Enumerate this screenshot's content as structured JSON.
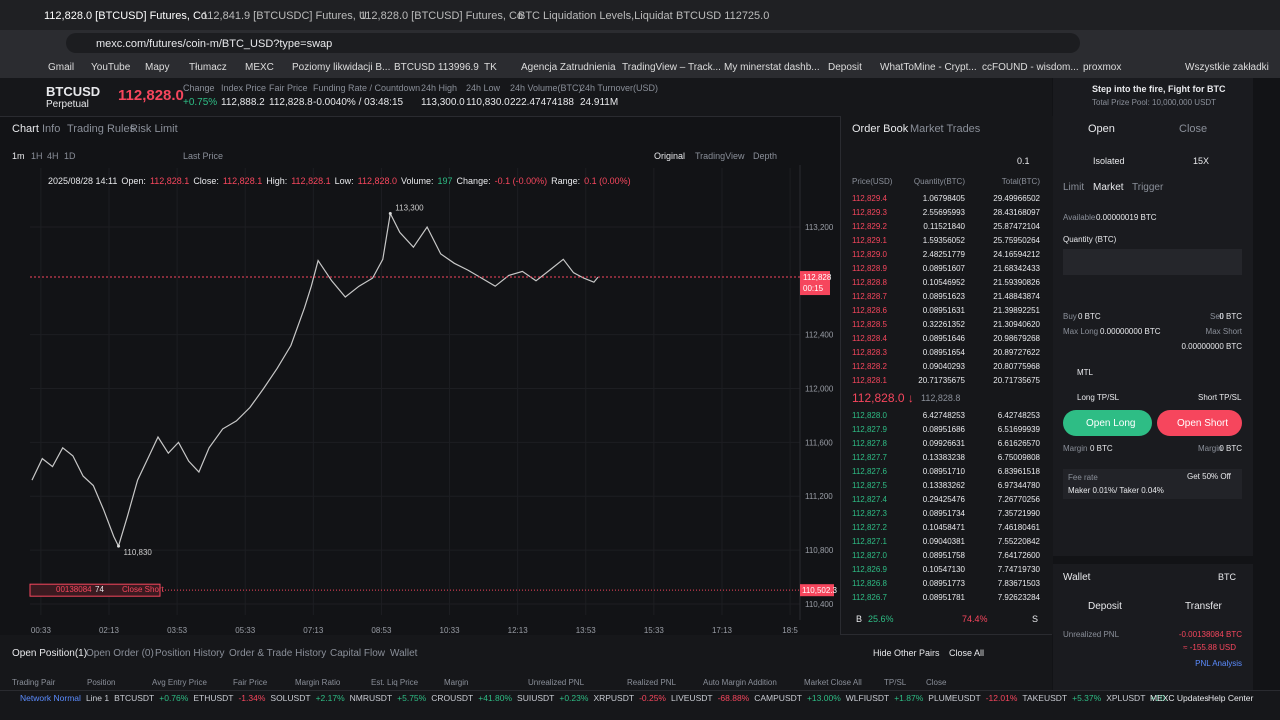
{
  "browser": {
    "tabs": [
      "112,828.0 [BTCUSD] Futures, Co",
      "112,841.9 [BTCUSDC] Futures, U",
      "112,828.0 [BTCUSD] Futures, Co",
      "BTC Liquidation Levels,Liquidat",
      "BTCUSD 112725.0"
    ],
    "address": "mexc.com/futures/coin-m/BTC_USD?type=swap",
    "bookmarks": [
      "Gmail",
      "YouTube",
      "Mapy",
      "Tłumacz",
      "MEXC",
      "Poziomy likwidacji B...",
      "BTCUSD 113996.9",
      "TK",
      "Agencja Zatrudnienia",
      "TradingView – Track...",
      "My minerstat dashb...",
      "Deposit",
      "WhatToMine - Crypt...",
      "ccFOUND - wisdom...",
      "proxmox",
      "Wszystkie zakładki"
    ]
  },
  "header": {
    "symbol": "BTCUSD",
    "contract": "Perpetual",
    "price": "112,828.0",
    "stats": [
      {
        "label": "Change",
        "value": "+0.75%"
      },
      {
        "label": "Index Price",
        "value": "112,888.2"
      },
      {
        "label": "Fair Price",
        "value": "112,828.8"
      },
      {
        "label": "Funding Rate / Countdown",
        "value": "-0.0040% / 03:48:15"
      },
      {
        "label": "24h High",
        "value": "113,300.0"
      },
      {
        "label": "24h Low",
        "value": "110,830.0"
      },
      {
        "label": "24h Volume(BTC)",
        "value": "222.47474188"
      },
      {
        "label": "24h Turnover(USD)",
        "value": "24.911M"
      }
    ]
  },
  "chart_panel": {
    "tabs": [
      "Chart",
      "Info",
      "Trading Rules",
      "Risk Limit"
    ],
    "intervals": [
      "1m",
      "1H",
      "4H",
      "1D"
    ],
    "price_source": "Last Price",
    "views": [
      "Original",
      "TradingView",
      "Depth"
    ],
    "ohlc": {
      "date": "2025/08/28 14:11",
      "items": [
        {
          "label": "Open:",
          "value": "112,828.1"
        },
        {
          "label": "Close:",
          "value": "112,828.1"
        },
        {
          "label": "High:",
          "value": "112,828.1"
        },
        {
          "label": "Low:",
          "value": "112,828.0"
        },
        {
          "label": "Volume:",
          "value": "197"
        },
        {
          "label": "Change:",
          "value": "-0.1 (-0.00%)"
        },
        {
          "label": "Range:",
          "value": "0.1 (0.00%)"
        }
      ]
    },
    "position_bar": {
      "pnl": "00138084",
      "size": "74",
      "action": "Close Short"
    }
  },
  "chart_data": {
    "type": "line",
    "color": "#c8c8c8",
    "x": [
      20,
      35,
      50,
      65,
      80,
      95,
      110,
      125,
      140,
      147,
      160,
      175,
      190,
      205,
      220,
      235,
      250,
      265,
      280,
      300,
      320,
      340,
      360,
      380,
      400,
      420,
      430,
      440,
      460,
      480,
      500,
      520,
      535,
      546,
      560,
      580,
      600,
      620,
      640,
      660,
      680,
      700,
      720,
      740,
      760,
      780,
      800,
      815,
      830,
      845,
      851
    ],
    "values": [
      111320,
      111480,
      111420,
      111560,
      111500,
      111350,
      111280,
      111100,
      110900,
      110830,
      111050,
      111320,
      111480,
      111640,
      111520,
      111600,
      111460,
      111380,
      111560,
      111700,
      111760,
      111860,
      112000,
      112150,
      112320,
      112600,
      112760,
      112950,
      112800,
      112680,
      112760,
      112820,
      112960,
      113300,
      113160,
      113050,
      113200,
      113000,
      112930,
      112880,
      112820,
      112760,
      112840,
      112870,
      112800,
      112880,
      112960,
      112860,
      112820,
      112790,
      112828
    ],
    "xlim": [
      17,
      1174
    ],
    "ylim": [
      110318,
      113638
    ],
    "xticks": [
      {
        "value": 33,
        "label": "00:33"
      },
      {
        "value": 133,
        "label": "02:13"
      },
      {
        "value": 233,
        "label": "03:53"
      },
      {
        "value": 333,
        "label": "05:33"
      },
      {
        "value": 433,
        "label": "07:13"
      },
      {
        "value": 533,
        "label": "08:53"
      },
      {
        "value": 633,
        "label": "10:33"
      },
      {
        "value": 733,
        "label": "12:13"
      },
      {
        "value": 833,
        "label": "13:53"
      },
      {
        "value": 933,
        "label": "15:33"
      },
      {
        "value": 1033,
        "label": "17:13"
      },
      {
        "value": 1133,
        "label": "18:5"
      }
    ],
    "yticks": [
      {
        "value": 113200,
        "label": "113,200"
      },
      {
        "value": 112400,
        "label": "112,400"
      },
      {
        "value": 112000,
        "label": "112,000"
      },
      {
        "value": 111600,
        "label": "111,600"
      },
      {
        "value": 111200,
        "label": "111,200"
      },
      {
        "value": 110800,
        "label": "110,800"
      },
      {
        "value": 110400,
        "label": "110,400"
      }
    ],
    "annotations": [
      {
        "x": 546,
        "value": 113300,
        "label": "113,300"
      },
      {
        "x": 147,
        "value": 110830,
        "label": "110,830"
      }
    ],
    "last_price": {
      "value": 112828,
      "label": "112,828",
      "countdown": "00:15"
    },
    "liquidation": {
      "value": 110502.3,
      "label": "110,502.3"
    }
  },
  "order_book": {
    "tabs": [
      "Order Book",
      "Market Trades"
    ],
    "precision": "0.1",
    "headers": [
      "Price(USD)",
      "Quantity(BTC)",
      "Total(BTC)"
    ],
    "asks": [
      [
        "112,829.4",
        "1.06798405",
        "29.49966502"
      ],
      [
        "112,829.3",
        "2.55695993",
        "28.43168097"
      ],
      [
        "112,829.2",
        "0.11521840",
        "25.87472104"
      ],
      [
        "112,829.1",
        "1.59356052",
        "25.75950264"
      ],
      [
        "112,829.0",
        "2.48251779",
        "24.16594212"
      ],
      [
        "112,828.9",
        "0.08951607",
        "21.68342433"
      ],
      [
        "112,828.8",
        "0.10546952",
        "21.59390826"
      ],
      [
        "112,828.7",
        "0.08951623",
        "21.48843874"
      ],
      [
        "112,828.6",
        "0.08951631",
        "21.39892251"
      ],
      [
        "112,828.5",
        "0.32261352",
        "21.30940620"
      ],
      [
        "112,828.4",
        "0.08951646",
        "20.98679268"
      ],
      [
        "112,828.3",
        "0.08951654",
        "20.89727622"
      ],
      [
        "112,828.2",
        "0.09040293",
        "20.80775968"
      ],
      [
        "112,828.1",
        "20.71735675",
        "20.71735675"
      ]
    ],
    "last": "112,828.0 ↓",
    "mark": "112,828.8",
    "bids": [
      [
        "112,828.0",
        "6.42748253",
        "6.42748253"
      ],
      [
        "112,827.9",
        "0.08951686",
        "6.51699939"
      ],
      [
        "112,827.8",
        "0.09926631",
        "6.61626570"
      ],
      [
        "112,827.7",
        "0.13383238",
        "6.75009808"
      ],
      [
        "112,827.6",
        "0.08951710",
        "6.83961518"
      ],
      [
        "112,827.5",
        "0.13383262",
        "6.97344780"
      ],
      [
        "112,827.4",
        "0.29425476",
        "7.26770256"
      ],
      [
        "112,827.3",
        "0.08951734",
        "7.35721990"
      ],
      [
        "112,827.2",
        "0.10458471",
        "7.46180461"
      ],
      [
        "112,827.1",
        "0.09040381",
        "7.55220842"
      ],
      [
        "112,827.0",
        "0.08951758",
        "7.64172600"
      ],
      [
        "112,826.9",
        "0.10547130",
        "7.74719730"
      ],
      [
        "112,826.8",
        "0.08951773",
        "7.83671503"
      ],
      [
        "112,826.7",
        "0.08951781",
        "7.92623284"
      ]
    ],
    "buy_label": "B",
    "buy_ratio": "25.6%",
    "sell_ratio": "74.4%",
    "sell_label": "S"
  },
  "trade": {
    "promo": "Step into the fire, Fight for BTC",
    "prize": "Total Prize Pool: 10,000,000 USDT",
    "tabs": [
      "Open",
      "Close"
    ],
    "margin_mode": "Isolated",
    "leverage": "15X",
    "order_types": [
      "Limit",
      "Market",
      "Trigger"
    ],
    "available_label": "Available",
    "available": "0.00000019 BTC",
    "quantity_label": "Quantity (BTC)",
    "buy_label": "Buy",
    "buy": "0 BTC",
    "sell_label": "Sell",
    "sell": "0 BTC",
    "max_long_label": "Max Long",
    "max_long": "0.00000000 BTC",
    "max_short_label": "Max Short",
    "max_short": "0.00000000 BTC",
    "mtl": "MTL",
    "long_tpsl": "Long TP/SL",
    "short_tpsl": "Short TP/SL",
    "open_long": "Open Long",
    "open_short": "Open Short",
    "margin_label": "Margin",
    "margin_long": "0 BTC",
    "margin_short": "0 BTC",
    "fee_label": "Fee rate",
    "fee_promo": "Get 50% Off",
    "fee": "Maker 0.01%/ Taker 0.04%"
  },
  "wallet": {
    "title": "Wallet",
    "currency": "BTC",
    "deposit": "Deposit",
    "transfer": "Transfer",
    "upnl_label": "Unrealized PNL",
    "upnl": "-0.00138084 BTC",
    "upnl_usd": "≈ -155.88 USD",
    "analysis": "PNL Analysis"
  },
  "positions": {
    "tabs": [
      "Open Position(1)",
      "Open Order (0)",
      "Position History",
      "Order & Trade History",
      "Capital Flow",
      "Wallet"
    ],
    "hide_pairs": "Hide Other Pairs",
    "close_all": "Close All",
    "columns": [
      "Trading Pair",
      "Position",
      "Avg Entry Price",
      "Fair Price",
      "Margin Ratio",
      "Est. Liq Price",
      "Margin",
      "Unrealized PNL",
      "Realized PNL",
      "Auto Margin Addition",
      "Market Close All",
      "TP/SL",
      "Close"
    ]
  },
  "status": {
    "network": "Network Normal",
    "line": "Line 1",
    "tickers": [
      [
        "BTCUSDT",
        "+0.76%"
      ],
      [
        "ETHUSDT",
        "-1.34%"
      ],
      [
        "SOLUSDT",
        "+2.17%"
      ],
      [
        "NMRUSDT",
        "+5.75%"
      ],
      [
        "CROUSDT",
        "+41.80%"
      ],
      [
        "SUIUSDT",
        "+0.23%"
      ],
      [
        "XRPUSDT",
        "-0.25%"
      ],
      [
        "LIVEUSDT",
        "-68.88%"
      ],
      [
        "CAMPUSDT",
        "+13.00%"
      ],
      [
        "WLFIUSDT",
        "+1.87%"
      ],
      [
        "PLUMEUSDT",
        "-12.01%"
      ],
      [
        "TAKEUSDT",
        "+5.37%"
      ],
      [
        "XPLUSDT",
        "+10."
      ]
    ],
    "updates": "MEXC Updates",
    "help": "Help Center"
  }
}
